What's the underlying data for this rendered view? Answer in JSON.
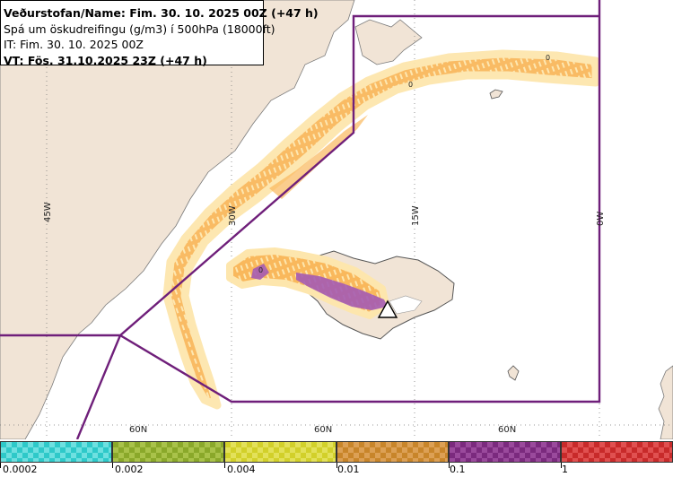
{
  "info": {
    "line1": "Veðurstofan/Name: Fim. 30. 10. 2025 00Z (+47 h)",
    "line2": "Spá um öskudreifingu (g/m3) í 500hPa (18000ft)",
    "line3": "IT: Fim. 30. 10. 2025 00Z",
    "line4": "VT: Fös. 31.10.2025 23Z (+47 h)"
  },
  "map": {
    "lon_labels": [
      "45W",
      "30W",
      "15W",
      "0W"
    ],
    "lat_labels": [
      "60N",
      "60N",
      "60N"
    ],
    "contour_labels": [
      "0",
      "0",
      "0"
    ]
  },
  "legend": {
    "items": [
      {
        "color": "#2ec9c9",
        "alt": "#6ee0e0"
      },
      {
        "color": "#8aa82a",
        "alt": "#a9c24a"
      },
      {
        "color": "#d2d02a",
        "alt": "#e3e15a"
      },
      {
        "color": "#c8852a",
        "alt": "#dca055"
      },
      {
        "color": "#7b2a7e",
        "alt": "#9a4a9c"
      },
      {
        "color": "#c82a2a",
        "alt": "#e05050"
      }
    ],
    "ticks": [
      "0.0002",
      "0.002",
      "0.004",
      "0.01",
      "0.1",
      "1"
    ]
  },
  "colors": {
    "land": "#f1e4d6",
    "ash_light": "#fde6ad",
    "ash_orange": "#f9b85c",
    "ash_purple": "#a45bb2",
    "boundary": "#6f1f7a"
  }
}
